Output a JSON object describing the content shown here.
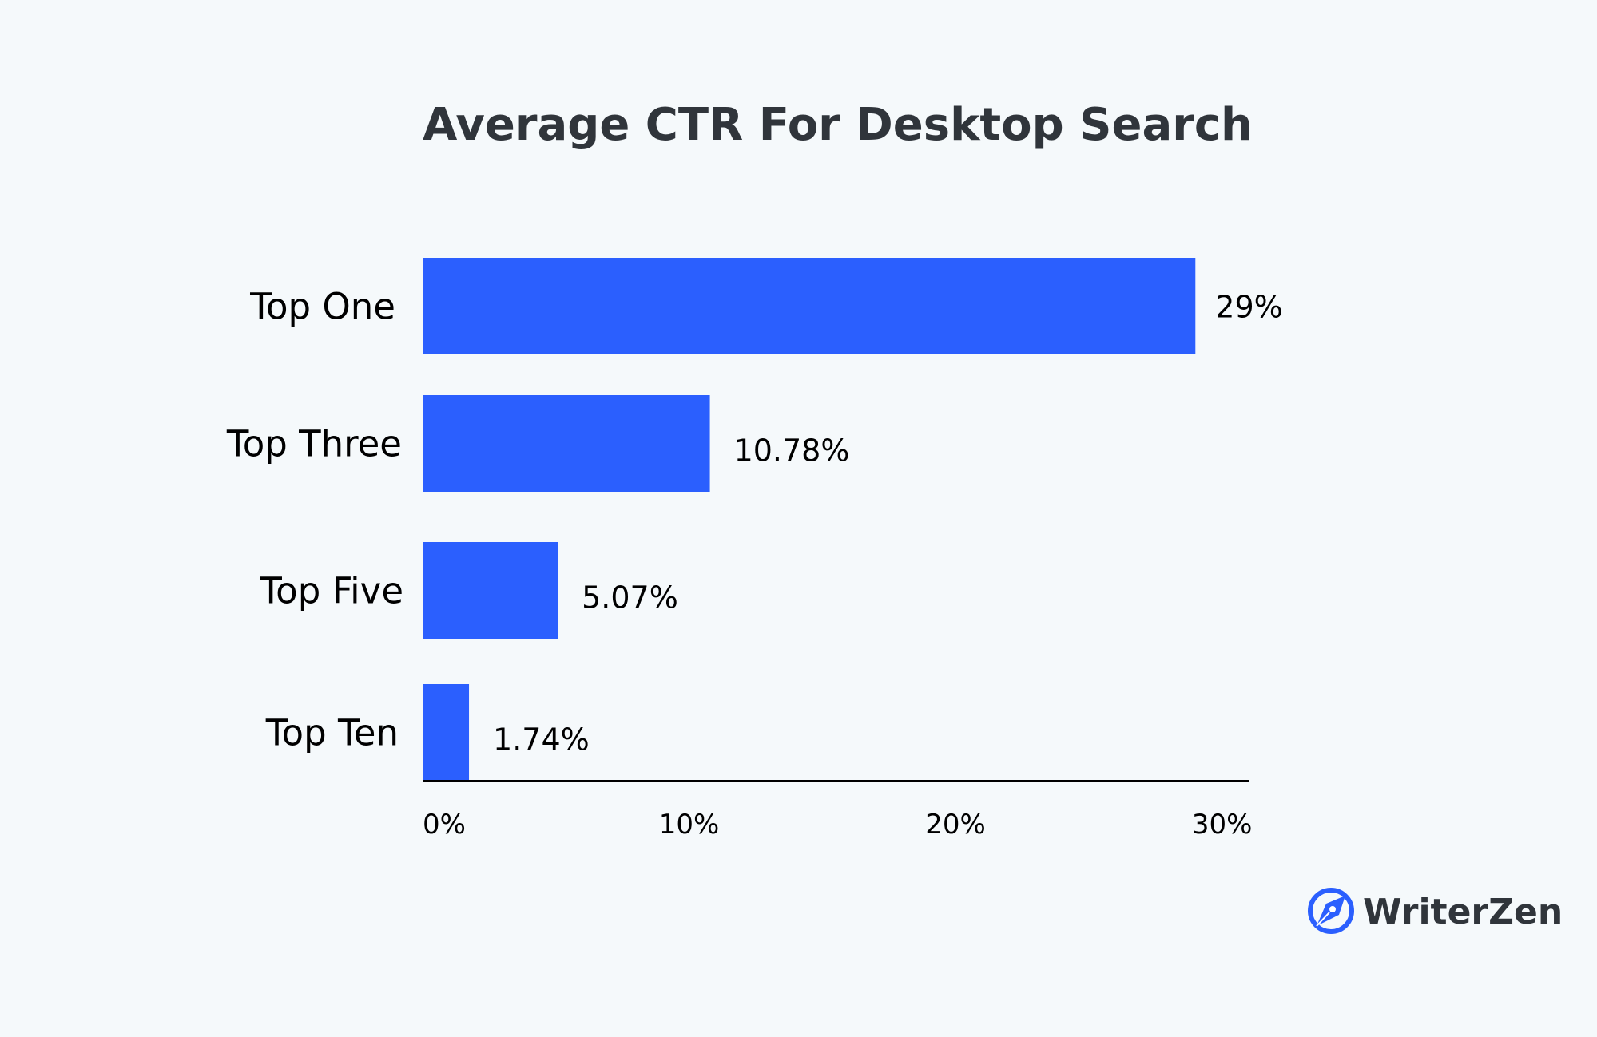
{
  "chart_data": {
    "type": "bar",
    "orientation": "horizontal",
    "title": "Average CTR For Desktop Search",
    "xlabel": "",
    "ylabel": "",
    "categories": [
      "Top One",
      "Top Three",
      "Top Five",
      "Top Ten"
    ],
    "values": [
      29,
      10.78,
      5.07,
      1.74
    ],
    "value_labels": [
      "29%",
      "10.78%",
      "5.07%",
      "1.74%"
    ],
    "xlim": [
      0,
      31
    ],
    "x_ticks": [
      0,
      10,
      20,
      30
    ],
    "x_tick_labels": [
      "0%",
      "10%",
      "20%",
      "30%"
    ],
    "grid": false,
    "legend": "none",
    "bar_color": "#2b5ffe"
  },
  "branding": {
    "name": "WriterZen",
    "logo_icon": "writerzen-pen-logo-icon",
    "logo_color": "#2b5ffe"
  }
}
